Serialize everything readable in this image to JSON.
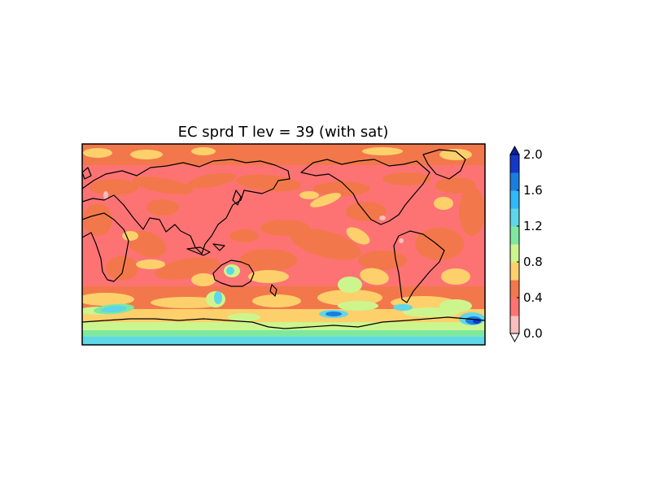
{
  "chart_data": {
    "type": "heatmap",
    "title": "EC sprd T lev = 39 (with sat)",
    "xlabel": "",
    "ylabel": "",
    "map_projection": "cylindrical, centered on Pacific",
    "coastlines": true,
    "colorbar": {
      "position": "right",
      "extend": "both",
      "levels": [
        0.0,
        0.2,
        0.4,
        0.6,
        0.8,
        1.0,
        1.2,
        1.4,
        1.6,
        1.8,
        2.0
      ],
      "tick_values": [
        0.0,
        0.4,
        0.8,
        1.2,
        1.6,
        2.0
      ],
      "tick_labels": [
        "0.0",
        "0.4",
        "0.8",
        "1.2",
        "1.6",
        "2.0"
      ],
      "colors": [
        "#fbbebe",
        "#fd7373",
        "#f2784b",
        "#fdd06c",
        "#cdf58e",
        "#7fe8a0",
        "#5ed7e9",
        "#31b8f6",
        "#1c7de0",
        "#1439c8"
      ],
      "under_color": "#ffffff",
      "over_color": "#0d1fa8"
    },
    "dominant_range": [
      0.2,
      0.6
    ],
    "high_spread_regions": [
      "Southern Ocean",
      "Antarctic coast"
    ]
  }
}
